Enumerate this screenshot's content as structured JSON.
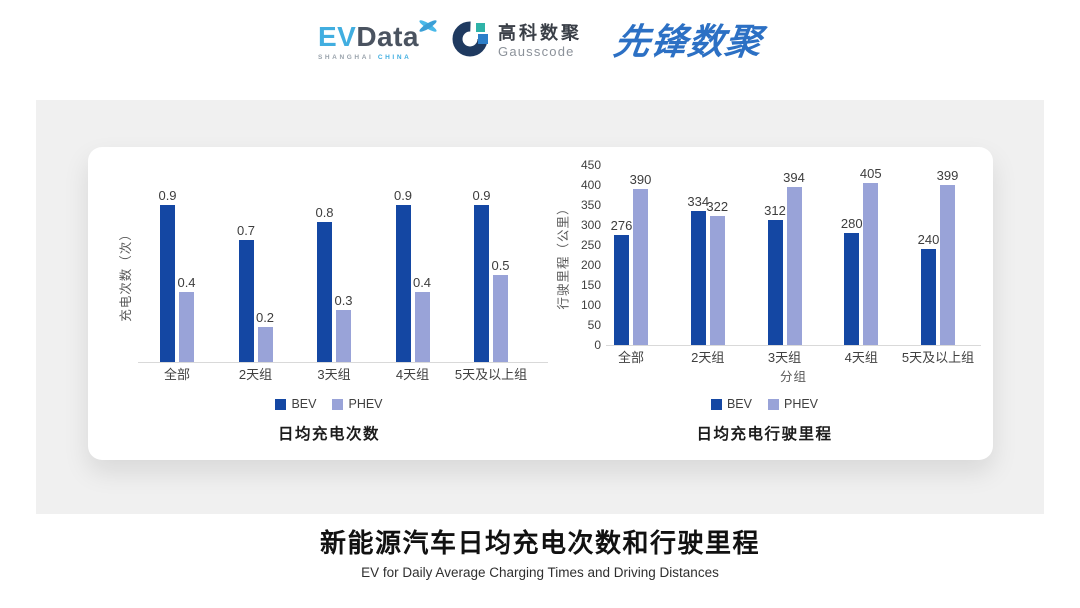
{
  "logos": {
    "evdata": {
      "word_ev": "EV",
      "word_data": "Data",
      "sub_left": "SHANGHAI",
      "sub_right": "CHINA"
    },
    "gausscode": {
      "cn": "高科数聚",
      "en": "Gausscode"
    },
    "xianfeng": {
      "text": "先锋数聚"
    }
  },
  "colors": {
    "series": [
      "#1447A3",
      "#99A3D8"
    ],
    "panel_bg": "#F0F0F0",
    "baseline": "#D9D9D9",
    "evdata_cyan": "#41AEE0",
    "evdata_dark": "#4A5360",
    "gausscode_navy": "#1F3A60",
    "gausscode_teal": "#2FB3A8",
    "gausscode_blue": "#2D7FC9",
    "xianfeng_blue": "#2C70C4"
  },
  "chart_data": [
    {
      "type": "bar",
      "title": "日均充电次数",
      "ylabel": "充电次数（次）",
      "xlabel": "",
      "categories": [
        "全部",
        "2天组",
        "3天组",
        "4天组",
        "5天及以上组"
      ],
      "series": [
        {
          "name": "BEV",
          "values": [
            0.9,
            0.7,
            0.8,
            0.9,
            0.9
          ]
        },
        {
          "name": "PHEV",
          "values": [
            0.4,
            0.2,
            0.3,
            0.4,
            0.5
          ]
        }
      ],
      "ylim": [
        0,
        1.0
      ],
      "yticks": [],
      "grid": false,
      "legend_position": "bottom",
      "value_labels": true
    },
    {
      "type": "bar",
      "title": "日均充电行驶里程",
      "ylabel": "行驶里程（公里）",
      "xlabel": "分组",
      "categories": [
        "全部",
        "2天组",
        "3天组",
        "4天组",
        "5天及以上组"
      ],
      "series": [
        {
          "name": "BEV",
          "values": [
            276,
            334,
            312,
            280,
            240
          ]
        },
        {
          "name": "PHEV",
          "values": [
            390,
            322,
            394,
            405,
            399
          ]
        }
      ],
      "ylim": [
        0,
        450
      ],
      "yticks": [
        0,
        50,
        100,
        150,
        200,
        250,
        300,
        350,
        400,
        450
      ],
      "grid": false,
      "legend_position": "bottom",
      "value_labels": true
    }
  ],
  "footer": {
    "title": "新能源汽车日均充电次数和行驶里程",
    "subtitle": "EV for Daily Average Charging Times and Driving Distances"
  }
}
